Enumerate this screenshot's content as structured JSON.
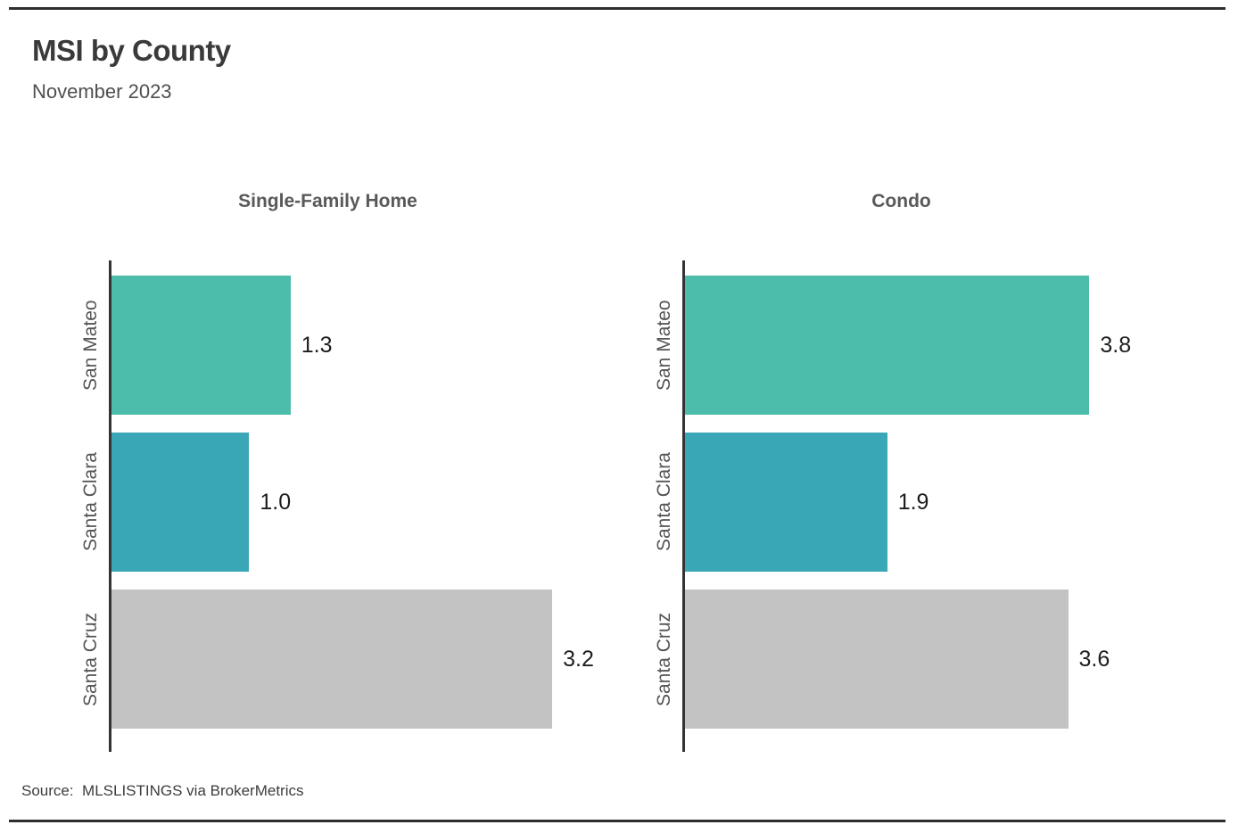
{
  "page": {
    "header": {
      "title": "MSI by County",
      "subtitle": "November 2023"
    },
    "footer": {
      "source": "Source:  MLSLISTINGS via BrokerMetrics"
    }
  },
  "colors": {
    "san_mateo_bar": "#4cbcab",
    "santa_clara_bar": "#39a7b6",
    "santa_cruz_bar": "#c3c3c3",
    "axis_line": "#333333",
    "border_rule": "#2e2e2e",
    "title_text": "#3a3a3a",
    "subtitle_text": "#4f4f4f",
    "chart_title_text": "#595959",
    "county_label_text": "#555555",
    "value_label_text": "#1d1d1d"
  },
  "chart_data": [
    {
      "type": "bar",
      "orientation": "horizontal",
      "title": "Single-Family Home",
      "categories": [
        "San Mateo",
        "Santa Clara",
        "Santa Cruz"
      ],
      "values": [
        1.3,
        1.0,
        3.2
      ],
      "value_labels": [
        "1.3",
        "1.0",
        "3.2"
      ],
      "bar_colors": [
        "#4cbcab",
        "#39a7b6",
        "#c3c3c3"
      ],
      "xlim": [
        0,
        3.4
      ],
      "xlabel": "",
      "ylabel": "",
      "grid": false,
      "legend": "none",
      "value_label_position": "right-of-bar"
    },
    {
      "type": "bar",
      "orientation": "horizontal",
      "title": "Condo",
      "categories": [
        "San Mateo",
        "Santa Clara",
        "Santa Cruz"
      ],
      "values": [
        3.8,
        1.9,
        3.6
      ],
      "value_labels": [
        "3.8",
        "1.9",
        "3.6"
      ],
      "bar_colors": [
        "#4cbcab",
        "#39a7b6",
        "#c3c3c3"
      ],
      "xlim": [
        0,
        4.4
      ],
      "xlabel": "",
      "ylabel": "",
      "grid": false,
      "legend": "none",
      "value_label_position": "right-of-bar"
    }
  ]
}
